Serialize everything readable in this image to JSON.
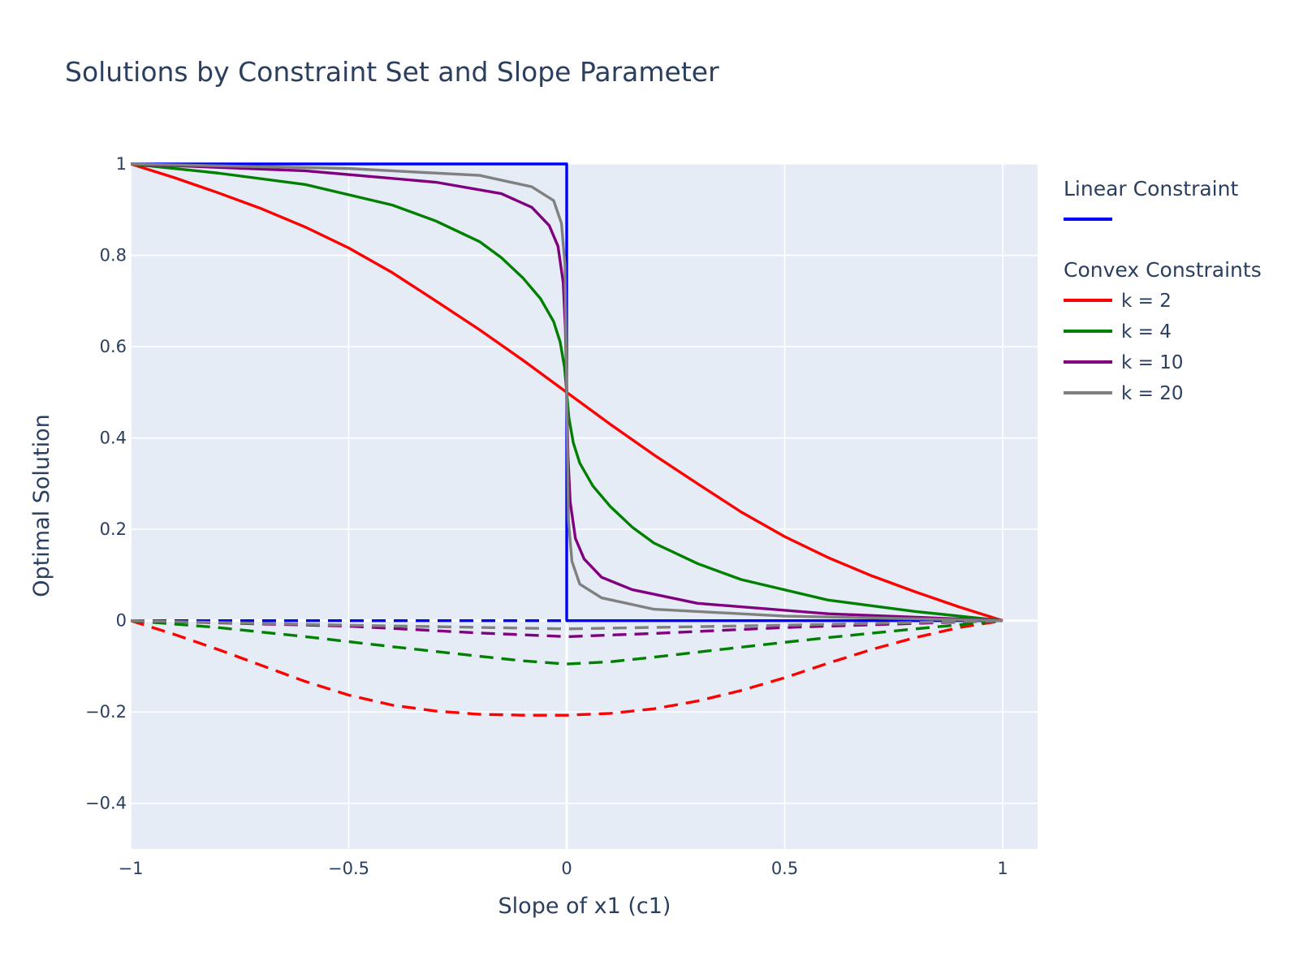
{
  "chart_data": {
    "type": "line",
    "title": "Solutions by Constraint Set and Slope Parameter",
    "xlabel": "Slope of x1 (c1)",
    "ylabel": "Optimal Solution",
    "xlim": [
      -1,
      1.08
    ],
    "ylim": [
      -0.5,
      1
    ],
    "x_ticks": [
      -1,
      -0.5,
      0,
      0.5,
      1
    ],
    "x_tick_labels": [
      "−1",
      "−0.5",
      "0",
      "0.5",
      "1"
    ],
    "y_ticks": [
      -0.4,
      -0.2,
      0,
      0.2,
      0.4,
      0.6,
      0.8,
      1
    ],
    "y_tick_labels": [
      "−0.4",
      "−0.2",
      "0",
      "0.2",
      "0.4",
      "0.6",
      "0.8",
      "1"
    ],
    "grid": true,
    "plot_bgcolor": "#e5ecf6",
    "legend_placement": "right",
    "legend": {
      "groups": [
        {
          "title": "Linear Constraint",
          "entries": [
            {
              "label": "",
              "color": "#0000ff"
            }
          ]
        },
        {
          "title": "Convex Constraints",
          "entries": [
            {
              "label": "k = 2",
              "color": "#ff0000"
            },
            {
              "label": "k = 4",
              "color": "#008000"
            },
            {
              "label": "k = 10",
              "color": "#800080"
            },
            {
              "label": "k = 20",
              "color": "#808080"
            }
          ]
        }
      ]
    },
    "series": [
      {
        "group": "Linear Constraint",
        "color": "#0000ff",
        "dash": "solid",
        "x": [
          -1,
          0,
          0,
          1
        ],
        "y": [
          1,
          1,
          0,
          0
        ]
      },
      {
        "group": "Linear Constraint",
        "color": "#0000ff",
        "dash": "dash",
        "x": [
          -1,
          0
        ],
        "y": [
          0,
          0
        ]
      },
      {
        "group": "Convex Constraints",
        "name": "k = 2",
        "color": "#ff0000",
        "dash": "solid",
        "x": [
          -1,
          -0.9,
          -0.8,
          -0.7,
          -0.6,
          -0.5,
          -0.4,
          -0.3,
          -0.2,
          -0.1,
          0,
          0.1,
          0.2,
          0.3,
          0.4,
          0.5,
          0.6,
          0.7,
          0.8,
          0.9,
          1
        ],
        "y": [
          1,
          0.97,
          0.937,
          0.902,
          0.862,
          0.816,
          0.762,
          0.7,
          0.637,
          0.57,
          0.5,
          0.43,
          0.363,
          0.3,
          0.238,
          0.184,
          0.138,
          0.098,
          0.063,
          0.03,
          0
        ]
      },
      {
        "group": "Convex Constraints",
        "name": "k = 2",
        "color": "#ff0000",
        "dash": "dash",
        "x": [
          -1,
          -0.9,
          -0.8,
          -0.7,
          -0.6,
          -0.5,
          -0.4,
          -0.3,
          -0.2,
          -0.1,
          0,
          0.1,
          0.2,
          0.3,
          0.4,
          0.5,
          0.6,
          0.7,
          0.8,
          0.9,
          1
        ],
        "y": [
          0,
          -0.03,
          -0.063,
          -0.098,
          -0.133,
          -0.163,
          -0.185,
          -0.198,
          -0.205,
          -0.207,
          -0.207,
          -0.203,
          -0.193,
          -0.176,
          -0.153,
          -0.125,
          -0.093,
          -0.063,
          -0.037,
          -0.015,
          0
        ]
      },
      {
        "group": "Convex Constraints",
        "name": "k = 4",
        "color": "#008000",
        "dash": "solid",
        "x": [
          -1,
          -0.8,
          -0.6,
          -0.4,
          -0.3,
          -0.2,
          -0.15,
          -0.1,
          -0.06,
          -0.03,
          -0.015,
          -0.005,
          0,
          0.005,
          0.015,
          0.03,
          0.06,
          0.1,
          0.15,
          0.2,
          0.3,
          0.4,
          0.6,
          0.8,
          1
        ],
        "y": [
          1,
          0.98,
          0.955,
          0.91,
          0.875,
          0.83,
          0.795,
          0.75,
          0.705,
          0.655,
          0.61,
          0.555,
          0.5,
          0.445,
          0.39,
          0.345,
          0.295,
          0.25,
          0.205,
          0.17,
          0.125,
          0.09,
          0.045,
          0.02,
          0
        ]
      },
      {
        "group": "Convex Constraints",
        "name": "k = 4",
        "color": "#008000",
        "dash": "dash",
        "x": [
          -1,
          -0.8,
          -0.6,
          -0.4,
          -0.2,
          -0.1,
          0,
          0.1,
          0.2,
          0.4,
          0.6,
          0.8,
          1
        ],
        "y": [
          0,
          -0.015,
          -0.035,
          -0.057,
          -0.078,
          -0.088,
          -0.095,
          -0.09,
          -0.08,
          -0.058,
          -0.037,
          -0.018,
          0
        ]
      },
      {
        "group": "Convex Constraints",
        "name": "k = 10",
        "color": "#800080",
        "dash": "solid",
        "x": [
          -1,
          -0.6,
          -0.3,
          -0.15,
          -0.08,
          -0.04,
          -0.02,
          -0.008,
          -0.003,
          0,
          0.003,
          0.008,
          0.02,
          0.04,
          0.08,
          0.15,
          0.3,
          0.6,
          1
        ],
        "y": [
          1,
          0.985,
          0.96,
          0.935,
          0.905,
          0.865,
          0.82,
          0.74,
          0.64,
          0.5,
          0.36,
          0.26,
          0.18,
          0.135,
          0.095,
          0.068,
          0.038,
          0.015,
          0
        ]
      },
      {
        "group": "Convex Constraints",
        "name": "k = 10",
        "color": "#800080",
        "dash": "dash",
        "x": [
          -1,
          -0.5,
          -0.2,
          0,
          0.2,
          0.5,
          1
        ],
        "y": [
          0,
          -0.012,
          -0.027,
          -0.035,
          -0.028,
          -0.015,
          0
        ]
      },
      {
        "group": "Convex Constraints",
        "name": "k = 20",
        "color": "#808080",
        "dash": "solid",
        "x": [
          -1,
          -0.5,
          -0.2,
          -0.08,
          -0.03,
          -0.012,
          -0.004,
          0,
          0.004,
          0.012,
          0.03,
          0.08,
          0.2,
          0.5,
          1
        ],
        "y": [
          1,
          0.99,
          0.975,
          0.95,
          0.92,
          0.87,
          0.78,
          0.5,
          0.22,
          0.13,
          0.08,
          0.05,
          0.025,
          0.01,
          0
        ]
      },
      {
        "group": "Convex Constraints",
        "name": "k = 20",
        "color": "#808080",
        "dash": "dash",
        "x": [
          -1,
          -0.5,
          0,
          0.5,
          1
        ],
        "y": [
          0,
          -0.01,
          -0.018,
          -0.01,
          0
        ]
      }
    ]
  }
}
